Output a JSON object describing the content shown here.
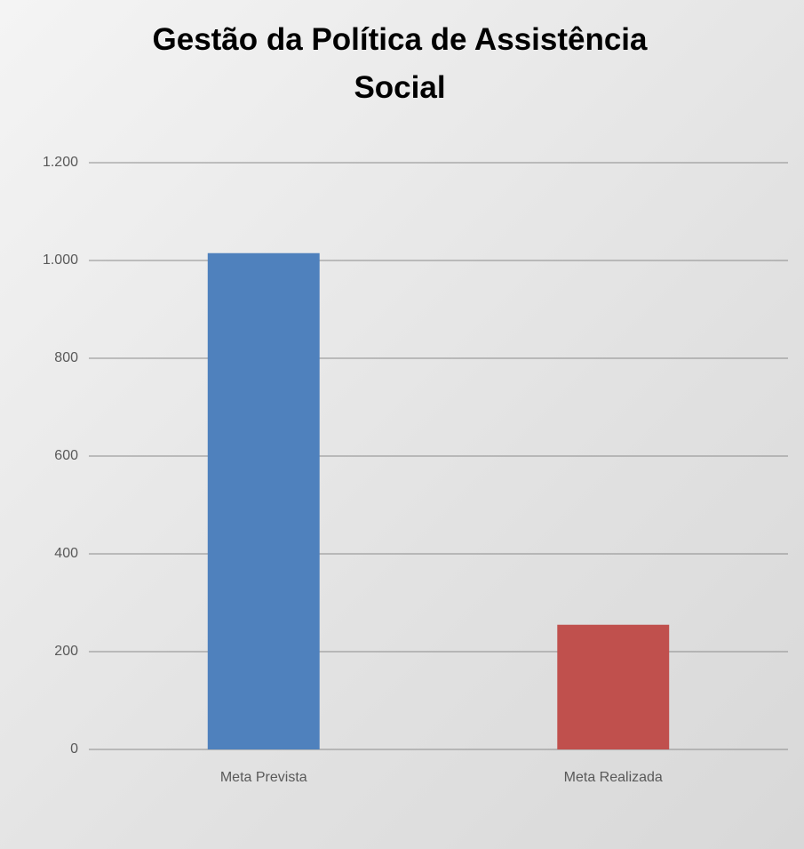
{
  "chart_data": {
    "type": "bar",
    "title": "Gestão da Política de Assistência Social",
    "categories": [
      "Meta Prevista",
      "Meta Realizada"
    ],
    "values": [
      1015,
      255
    ],
    "colors": [
      "#4f81bd",
      "#c0504d"
    ],
    "ylim": [
      0,
      1200
    ],
    "yticks": [
      0,
      200,
      400,
      600,
      800,
      {
        "value": 1000,
        "label": "1.000"
      },
      {
        "value": 1200,
        "label": "1.200"
      }
    ],
    "grid": true
  }
}
